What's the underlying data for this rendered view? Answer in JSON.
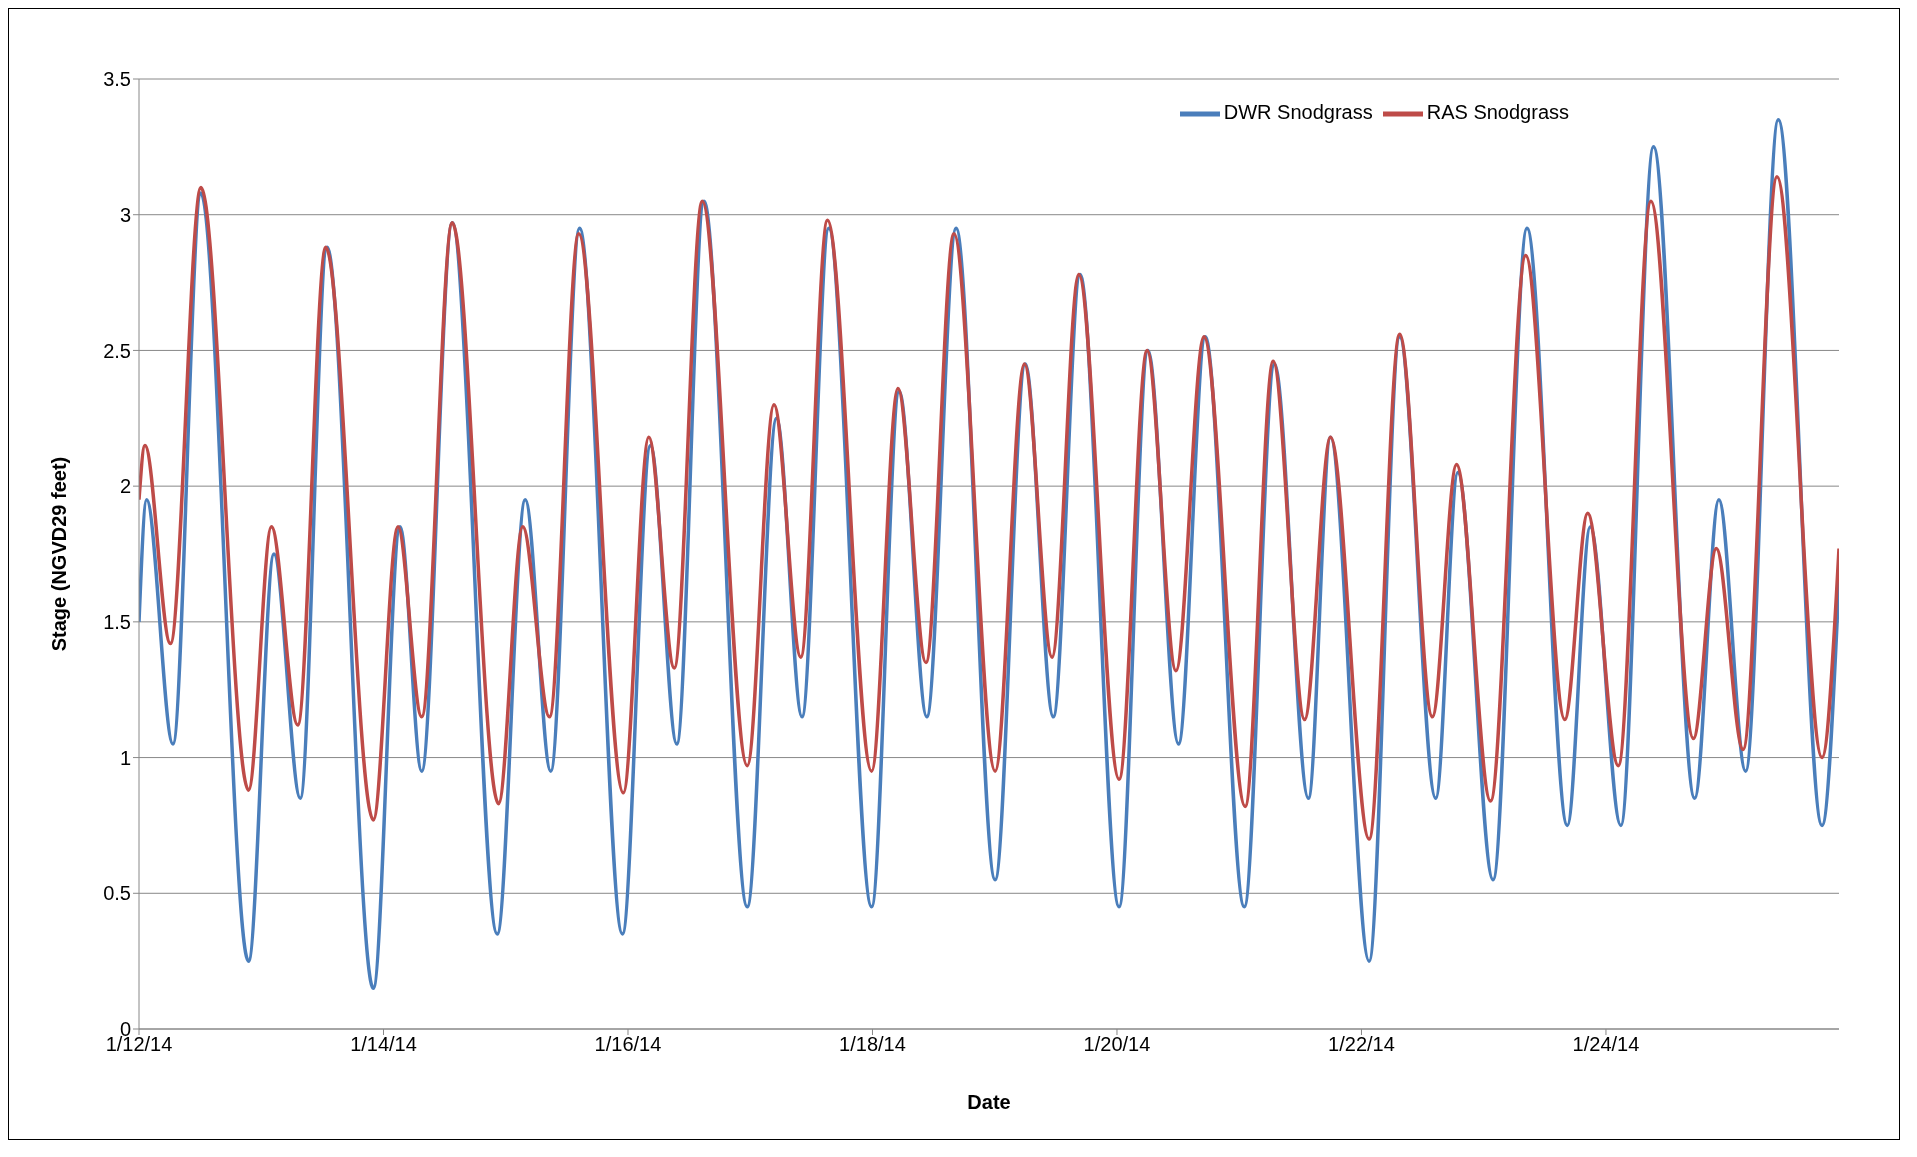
{
  "chart_data": {
    "type": "line",
    "xlabel": "Date",
    "ylabel": "Stage (NGVD29 feet)",
    "xlim": [
      "--01-12T00:00",
      "--01-25T21:45"
    ],
    "xticks": [
      {
        "value": "--01-12",
        "label": "1/12/14"
      },
      {
        "value": "--01-14",
        "label": "1/14/14"
      },
      {
        "value": "--01-16",
        "label": "1/16/14"
      },
      {
        "value": "--01-18",
        "label": "1/18/14"
      },
      {
        "value": "--01-20",
        "label": "1/20/14"
      },
      {
        "value": "--01-22",
        "label": "1/22/14"
      },
      {
        "value": "--01-24",
        "label": "1/24/14"
      }
    ],
    "ylim": [
      0,
      3.5
    ],
    "yticks": [
      0,
      0.5,
      1,
      1.5,
      2,
      2.5,
      3,
      3.5
    ],
    "grid": "y",
    "legend": "top right",
    "marker": "none",
    "line_style": "solid",
    "series": [
      {
        "name": "DWR Snodgrass",
        "color": "#4a7ebb",
        "x": [
          "--01-12T00:00",
          "--01-12T01:30",
          "--01-12T06:40",
          "--01-12T12:10",
          "--01-12T21:30",
          "--01-13T02:30",
          "--01-13T07:40",
          "--01-13T12:55",
          "--01-13T22:00",
          "--01-14T03:15",
          "--01-14T07:30",
          "--01-14T13:30",
          "--01-14T22:20",
          "--01-15T03:50",
          "--01-15T08:50",
          "--01-15T14:30",
          "--01-15T22:55",
          "--01-16T04:25",
          "--01-16T09:35",
          "--01-16T14:55",
          "--01-16T23:25",
          "--01-17T05:10",
          "--01-17T10:10",
          "--01-17T15:25",
          "--01-17T23:50",
          "--01-18T05:15",
          "--01-18T10:40",
          "--01-18T16:25",
          "--01-19T00:05",
          "--01-19T06:00",
          "--01-19T11:30",
          "--01-19T16:45",
          "--01-20T00:25",
          "--01-20T06:05",
          "--01-20T12:05",
          "--01-20T17:20",
          "--01-21T01:00",
          "--01-21T06:55",
          "--01-21T13:35",
          "--01-21T17:55",
          "--01-22T01:30",
          "--01-22T07:30",
          "--01-22T14:35",
          "--01-22T18:55",
          "--01-23T01:50",
          "--01-23T08:30",
          "--01-23T16:25",
          "--01-23T20:55",
          "--01-24T02:55",
          "--01-24T09:20",
          "--01-24T17:25",
          "--01-24T22:10",
          "--01-25T03:25",
          "--01-25T09:50",
          "--01-25T18:25",
          "--01-25T21:45"
        ],
        "values": [
          1.5,
          1.95,
          1.05,
          3.08,
          0.25,
          1.75,
          0.85,
          2.88,
          0.15,
          1.85,
          0.95,
          2.97,
          0.35,
          1.95,
          0.95,
          2.95,
          0.35,
          2.15,
          1.05,
          3.05,
          0.45,
          2.25,
          1.15,
          2.95,
          0.45,
          2.35,
          1.15,
          2.95,
          0.55,
          2.45,
          1.15,
          2.78,
          0.45,
          2.5,
          1.05,
          2.55,
          0.45,
          2.45,
          0.85,
          2.18,
          0.25,
          2.55,
          0.85,
          2.05,
          0.55,
          2.95,
          0.75,
          1.85,
          0.75,
          3.25,
          0.85,
          1.95,
          0.95,
          3.35,
          0.75,
          1.65
        ]
      },
      {
        "name": "RAS Snodgrass",
        "color": "#be4b48",
        "x": [
          "--01-12T00:00",
          "--01-12T01:10",
          "--01-12T06:10",
          "--01-12T12:10",
          "--01-12T21:30",
          "--01-13T02:00",
          "--01-13T07:10",
          "--01-13T12:40",
          "--01-13T22:00",
          "--01-14T02:50",
          "--01-14T07:30",
          "--01-14T13:30",
          "--01-14T22:35",
          "--01-15T03:20",
          "--01-15T08:35",
          "--01-15T14:20",
          "--01-15T23:05",
          "--01-16T04:05",
          "--01-16T09:05",
          "--01-16T14:35",
          "--01-16T23:25",
          "--01-17T04:40",
          "--01-17T09:55",
          "--01-17T15:10",
          "--01-17T23:50",
          "--01-18T05:00",
          "--01-18T10:30",
          "--01-18T16:00",
          "--01-19T00:05",
          "--01-19T05:50",
          "--01-19T11:15",
          "--01-19T16:30",
          "--01-20T00:25",
          "--01-20T05:55",
          "--01-20T11:35",
          "--01-20T17:05",
          "--01-21T01:10",
          "--01-21T06:40",
          "--01-21T12:50",
          "--01-21T17:55",
          "--01-22T01:30",
          "--01-22T07:30",
          "--01-22T13:55",
          "--01-22T18:40",
          "--01-23T01:20",
          "--01-23T08:15",
          "--01-23T15:55",
          "--01-23T20:25",
          "--01-24T02:25",
          "--01-24T08:50",
          "--01-24T17:10",
          "--01-24T21:40",
          "--01-25T02:55",
          "--01-25T09:35",
          "--01-25T18:25",
          "--01-25T21:45"
        ],
        "values": [
          1.95,
          2.15,
          1.42,
          3.1,
          0.88,
          1.85,
          1.12,
          2.88,
          0.77,
          1.85,
          1.15,
          2.97,
          0.83,
          1.85,
          1.15,
          2.93,
          0.87,
          2.18,
          1.33,
          3.05,
          0.97,
          2.3,
          1.37,
          2.98,
          0.95,
          2.36,
          1.35,
          2.93,
          0.95,
          2.45,
          1.37,
          2.78,
          0.92,
          2.5,
          1.32,
          2.55,
          0.82,
          2.46,
          1.14,
          2.18,
          0.7,
          2.56,
          1.15,
          2.08,
          0.84,
          2.85,
          1.14,
          1.9,
          0.97,
          3.05,
          1.07,
          1.77,
          1.03,
          3.14,
          1.0,
          1.77
        ]
      }
    ]
  }
}
